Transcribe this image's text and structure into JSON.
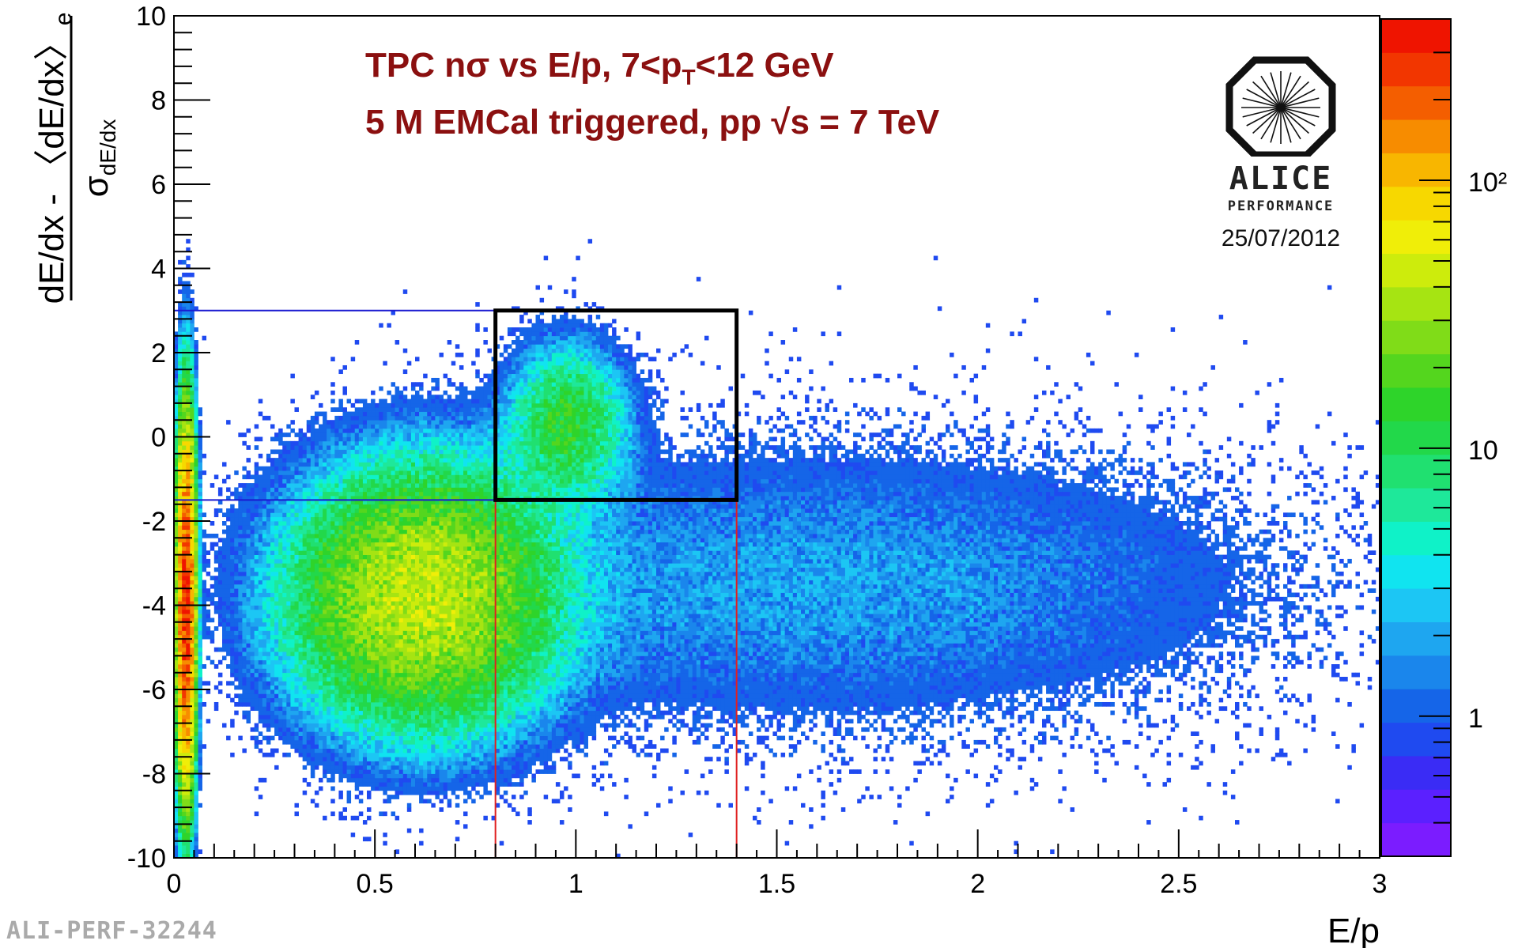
{
  "chart_data": {
    "type": "heatmap",
    "annotation_line1_prefix": "TPC nσ vs E/p, 7<p",
    "annotation_line1_sub": "T",
    "annotation_line1_suffix": "<12 GeV",
    "annotation_line2": "5 M EMCal triggered, pp √s = 7 TeV",
    "xlabel": "E/p",
    "ylabel_numerator": "dE/dx - 〈dE/dx〉",
    "ylabel_numerator_sub": "e",
    "ylabel_denominator": "σ",
    "ylabel_denominator_sub": "dE/dx",
    "xlim": [
      0,
      3
    ],
    "ylim": [
      -10,
      10
    ],
    "x_ticks": [
      "0",
      "0.5",
      "1",
      "1.5",
      "2",
      "2.5",
      "3"
    ],
    "y_ticks": [
      "-10",
      "-8",
      "-6",
      "-4",
      "-2",
      "0",
      "2",
      "4",
      "6",
      "8",
      "10"
    ],
    "z_scale": "log",
    "z_range": [
      0.3,
      400
    ],
    "z_ticks": [
      {
        "value": 1,
        "label": "1"
      },
      {
        "value": 10,
        "label": "10"
      },
      {
        "value": 100,
        "label": "10²"
      }
    ],
    "colormap": [
      "#7b1cff",
      "#5b20ff",
      "#3a2cf5",
      "#1f4af0",
      "#1565e8",
      "#1a86ec",
      "#1ea6f0",
      "#1cc6f4",
      "#10e4f0",
      "#0ff2c8",
      "#1ee89a",
      "#20e070",
      "#22d84a",
      "#2ed42a",
      "#54d61e",
      "#80dc18",
      "#a6e412",
      "#cdec0c",
      "#f0ee08",
      "#f7d800",
      "#f8b600",
      "#f78c00",
      "#f45e00",
      "#f23600",
      "#ef1400"
    ],
    "components": [
      {
        "name_hint": "x≈0 band",
        "x_mean": 0.03,
        "x_sigma": 0.012,
        "y_mean": -4.0,
        "y_sigma": 2.2,
        "peak": 300
      },
      {
        "name_hint": "hadron blob",
        "x_mean": 0.62,
        "x_sigma": 0.17,
        "y_mean": -3.8,
        "y_sigma": 1.6,
        "peak": 45
      },
      {
        "name_hint": "electron peak",
        "x_mean": 0.98,
        "x_sigma": 0.08,
        "y_mean": 0.3,
        "y_sigma": 1.0,
        "peak": 14
      },
      {
        "name_hint": "tail",
        "x_mean": 1.6,
        "x_sigma": 0.7,
        "y_mean": -3.5,
        "y_sigma": 2.0,
        "peak": 2
      }
    ],
    "cut_lines": {
      "blue_horizontal_y": [
        3,
        -1.5
      ],
      "blue_x_range": [
        0,
        0.8
      ],
      "red_vertical_x": [
        0.8,
        1.4
      ],
      "red_y_range": [
        -10,
        -1.5
      ],
      "black_box": {
        "x": [
          0.8,
          1.4
        ],
        "y": [
          -1.5,
          3
        ]
      }
    },
    "colors": {
      "blue_line": "#1a1ad0",
      "red_line": "#e02020",
      "black_box": "#000000",
      "annotation": "#8b1010"
    }
  },
  "logo": {
    "word": "ALICE",
    "sub": "PERFORMANCE"
  },
  "date": "25/07/2012",
  "watermark": "ALI-PERF-32244"
}
